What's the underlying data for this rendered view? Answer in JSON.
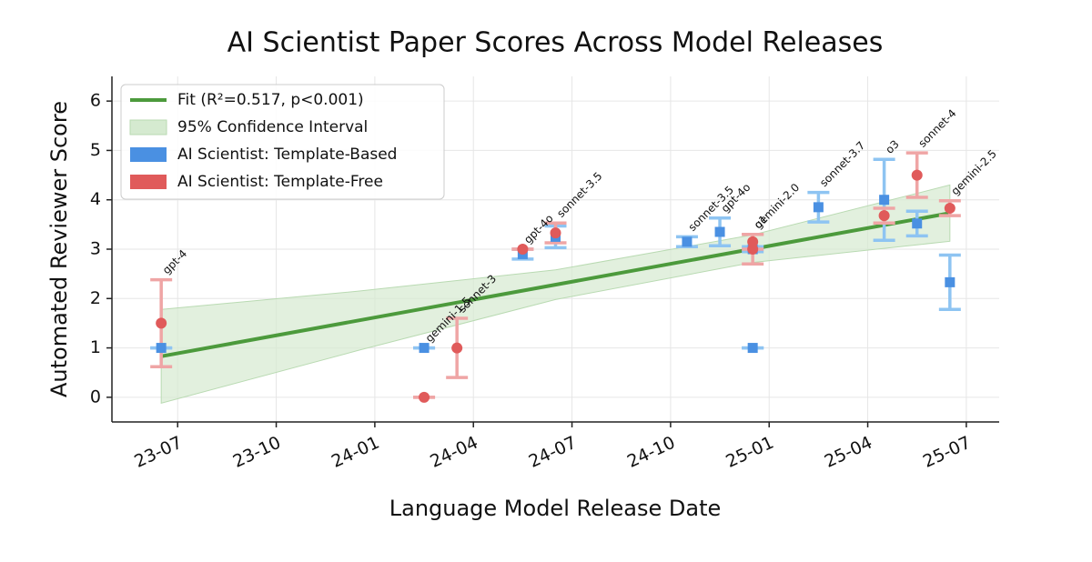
{
  "chart_data": {
    "type": "scatter",
    "title": "AI Scientist Paper Scores Across Model Releases",
    "x_label": "Language Model Release Date",
    "y_label": "Automated Reviewer Score",
    "x": [
      "2023-06",
      "2024-02",
      "2024-03",
      "2024-05",
      "2024-06",
      "2024-10",
      "2024-11",
      "2024-12",
      "2024-12",
      "2025-02",
      "2025-04",
      "2025-05",
      "2025-06"
    ],
    "labels": [
      "gpt-4",
      "gemini-1.5",
      "sonnet-3",
      "gpt-4o",
      "sonnet-3.5",
      "sonnet-3.5",
      "gpt-4o",
      "o1",
      "gemini-2.0",
      "sonnet-3.7",
      "o3",
      "sonnet-4",
      "gemini-2.5"
    ],
    "series": [
      {
        "name": "AI Scientist: Template-Based",
        "color": "#4a90e2",
        "error_color": "#8ec4f2",
        "marker": "square",
        "values": [
          1.0,
          1.0,
          null,
          2.9,
          3.25,
          3.15,
          3.35,
          1.0,
          3.0,
          3.85,
          4.0,
          3.52,
          2.33
        ],
        "errors": [
          0,
          0,
          null,
          0.1,
          0.22,
          0.1,
          0.28,
          0,
          0.05,
          0.3,
          0.82,
          0.25,
          0.55
        ]
      },
      {
        "name": "AI Scientist: Template-Free",
        "color": "#e05a5a",
        "error_color": "#efa5a5",
        "marker": "circle",
        "values": [
          1.5,
          0.0,
          1.0,
          3.0,
          3.33,
          null,
          null,
          3.0,
          3.15,
          null,
          3.68,
          4.5,
          3.83
        ],
        "errors": [
          0.88,
          0,
          0.6,
          0,
          0.2,
          null,
          null,
          0.3,
          0.15,
          null,
          0.15,
          0.45,
          0.15
        ]
      }
    ],
    "fit": {
      "name": "Fit (R²=0.517, p<0.001)",
      "color": "#4c9a3c",
      "x": [
        "2023-06",
        "2025-06"
      ],
      "y": [
        0.83,
        3.73
      ]
    },
    "ci": {
      "name": "95% Confidence Interval",
      "color": "#d5ead0",
      "x": [
        "2023-06",
        "2023-12",
        "2024-06",
        "2024-12",
        "2025-06"
      ],
      "lower": [
        -0.12,
        0.95,
        1.98,
        2.73,
        3.16
      ],
      "upper": [
        1.78,
        2.15,
        2.58,
        3.29,
        4.3
      ]
    },
    "xlim": [
      "2023-05",
      "2025-08"
    ],
    "xticks": [
      {
        "value": "2023-07",
        "label": "23-07"
      },
      {
        "value": "2023-10",
        "label": "23-10"
      },
      {
        "value": "2024-01",
        "label": "24-01"
      },
      {
        "value": "2024-04",
        "label": "24-04"
      },
      {
        "value": "2024-07",
        "label": "24-07"
      },
      {
        "value": "2024-10",
        "label": "24-10"
      },
      {
        "value": "2025-01",
        "label": "25-01"
      },
      {
        "value": "2025-04",
        "label": "25-04"
      },
      {
        "value": "2025-07",
        "label": "25-07"
      }
    ],
    "ylim": [
      -0.5,
      6.5
    ],
    "yticks": [
      0,
      1,
      2,
      3,
      4,
      5,
      6
    ],
    "grid": true,
    "legend": "upper left"
  }
}
